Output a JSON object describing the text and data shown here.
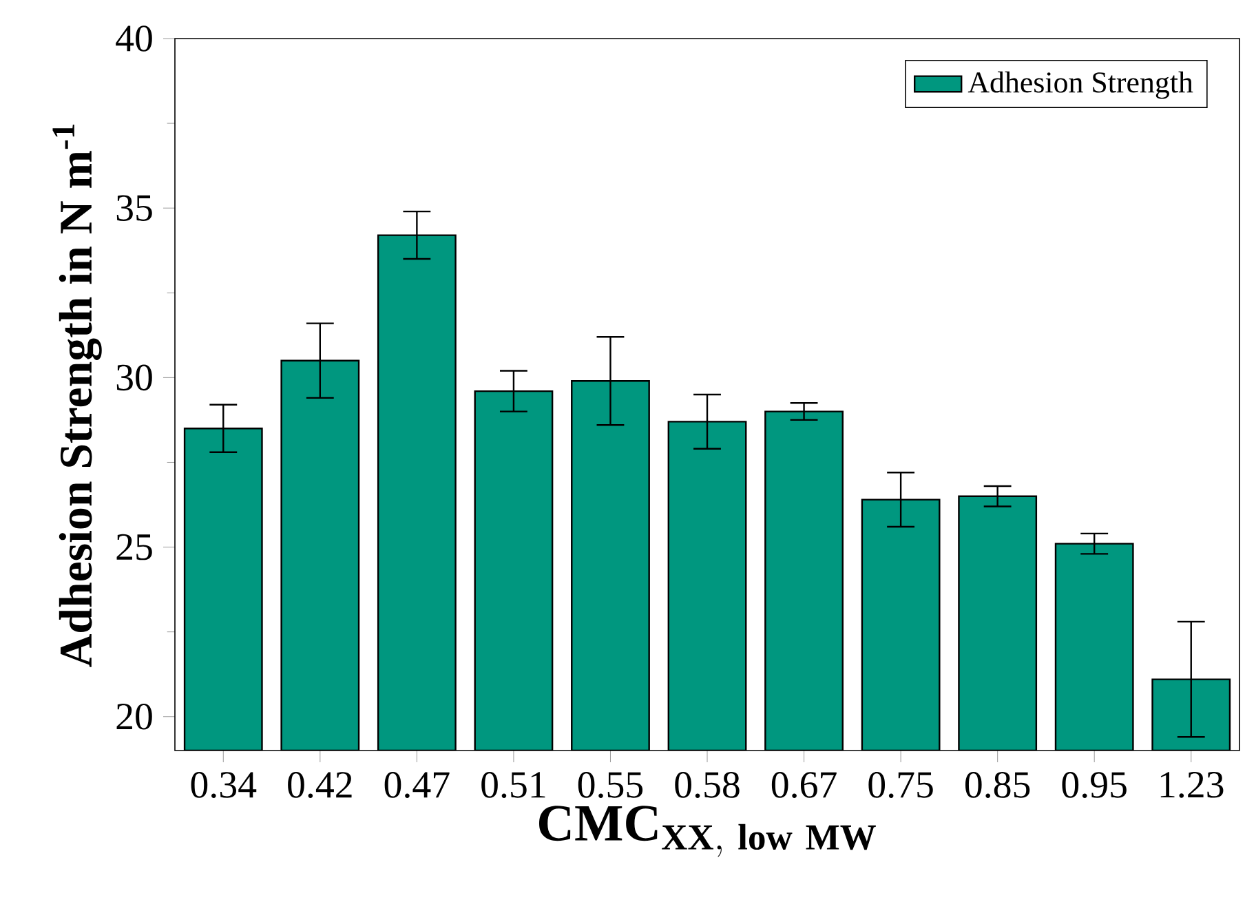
{
  "chart_data": {
    "type": "bar",
    "xlabel": "\\mathbf{CMC}_{\\mathbf{XX,\\ low\\ MW}}",
    "ylabel": "Adhesion Strength in N m$^{-1}$",
    "categories": [
      "0.34",
      "0.42",
      "0.47",
      "0.51",
      "0.55",
      "0.58",
      "0.67",
      "0.75",
      "0.85",
      "0.95",
      "1.23"
    ],
    "series": [
      {
        "name": "Adhesion Strength",
        "color": "#00977f",
        "values": [
          28.5,
          30.5,
          34.2,
          29.6,
          29.9,
          28.7,
          29.0,
          26.4,
          26.5,
          25.1,
          21.1
        ],
        "errors": [
          0.7,
          1.1,
          0.7,
          0.6,
          1.3,
          0.8,
          0.25,
          0.8,
          0.3,
          0.3,
          1.7
        ]
      }
    ],
    "ylim": [
      19,
      40
    ],
    "yticks": [
      20,
      25,
      30,
      35,
      40
    ],
    "legend": "top right"
  }
}
